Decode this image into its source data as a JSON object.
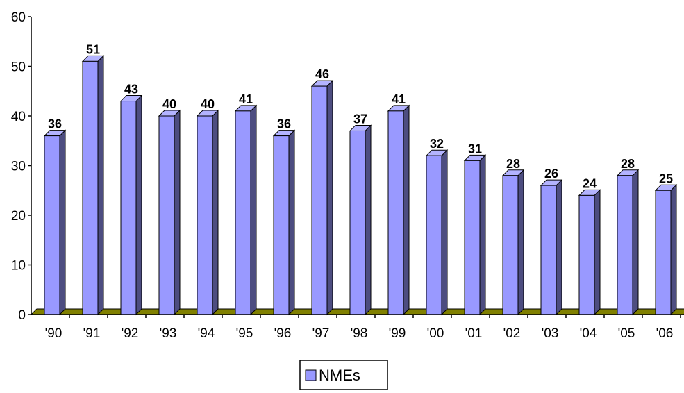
{
  "chart_data": {
    "type": "bar",
    "categories": [
      "'90",
      "'91",
      "'92",
      "'93",
      "'94",
      "'95",
      "'96",
      "'97",
      "'98",
      "'99",
      "'00",
      "'01",
      "'02",
      "'03",
      "'04",
      "'05",
      "'06"
    ],
    "series": [
      {
        "name": "NMEs",
        "values": [
          36,
          51,
          43,
          40,
          40,
          41,
          36,
          46,
          37,
          41,
          32,
          31,
          28,
          26,
          24,
          28,
          25
        ]
      }
    ],
    "ylim": [
      0,
      60
    ],
    "yticks": [
      0,
      10,
      20,
      30,
      40,
      50,
      60
    ],
    "grid": false,
    "legend_position": "bottom-center",
    "three_d": true,
    "colors": {
      "bar_front": "#9999ff",
      "bar_side": "#4d4d80",
      "bar_top": "#b3b3ff",
      "floor": "#808000",
      "axis": "#000000"
    }
  }
}
